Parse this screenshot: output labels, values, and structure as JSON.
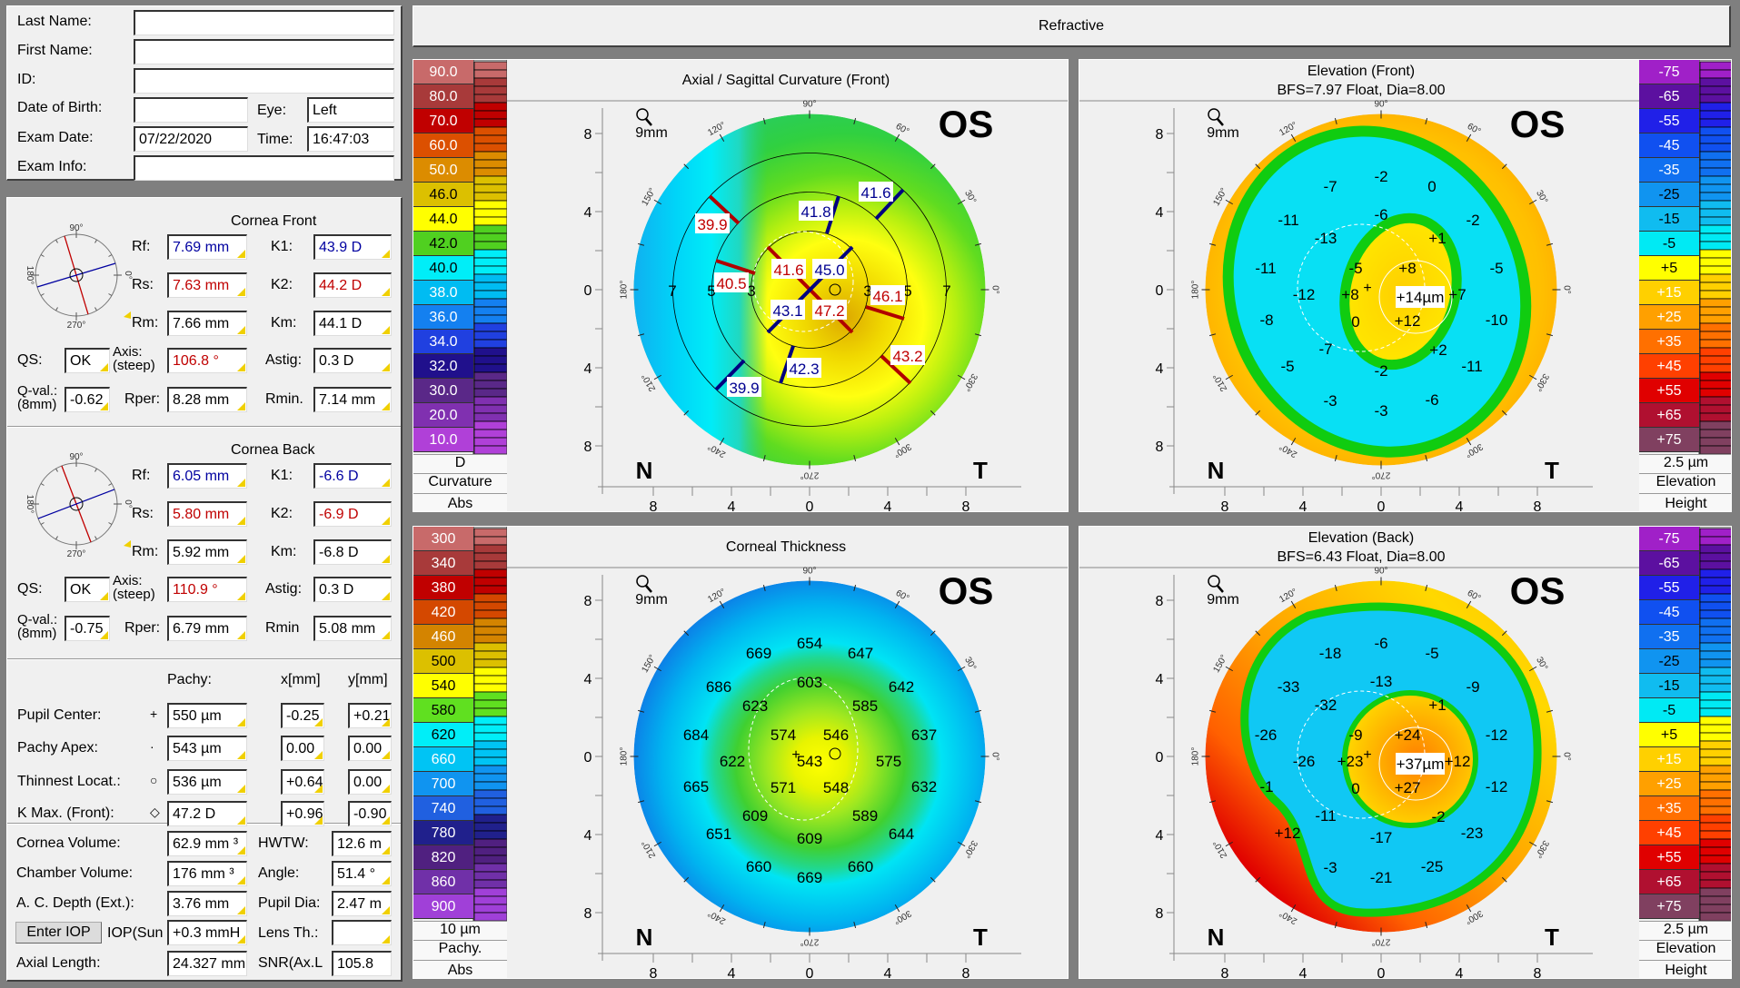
{
  "patient": {
    "last_name_label": "Last Name:",
    "last_name": "",
    "first_name_label": "First Name:",
    "first_name": "",
    "id_label": "ID:",
    "id": "",
    "dob_label": "Date of Birth:",
    "dob": "",
    "eye_label": "Eye:",
    "eye": "Left",
    "exam_date_label": "Exam Date:",
    "exam_date": "07/22/2020",
    "time_label": "Time:",
    "time": "16:47:03",
    "exam_info_label": "Exam Info:",
    "exam_info": ""
  },
  "compass_labels": {
    "top": "90°",
    "bottom": "270°",
    "left": "180°",
    "right": "0°"
  },
  "cornea_front": {
    "title": "Cornea Front",
    "rf_label": "Rf:",
    "rf": "7.69 mm",
    "k1_label": "K1:",
    "k1": "43.9 D",
    "rs_label": "Rs:",
    "rs": "7.63 mm",
    "k2_label": "K2:",
    "k2": "44.2 D",
    "rm_label": "Rm:",
    "rm": "7.66 mm",
    "km_label": "Km:",
    "km": "44.1 D",
    "qs_label": "QS:",
    "qs": "OK",
    "axis_label": "Axis:",
    "axis_label2": "(steep)",
    "axis": "106.8 °",
    "astig_label": "Astig:",
    "astig": "0.3 D",
    "qval_label": "Q-val.:",
    "qval_label2": "(8mm)",
    "qval": "-0.62",
    "rper_label": "Rper:",
    "rper": "8.28 mm",
    "rmin_label": "Rmin.",
    "rmin": "7.14 mm",
    "steep_axis_deg": 106.8,
    "flat_axis_deg": 16.8
  },
  "cornea_back": {
    "title": "Cornea Back",
    "rf_label": "Rf:",
    "rf": "6.05 mm",
    "k1_label": "K1:",
    "k1": "-6.6 D",
    "rs_label": "Rs:",
    "rs": "5.80 mm",
    "k2_label": "K2:",
    "k2": "-6.9 D",
    "rm_label": "Rm:",
    "rm": "5.92 mm",
    "km_label": "Km:",
    "km": "-6.8 D",
    "qs_label": "QS:",
    "qs": "OK",
    "axis_label": "Axis:",
    "axis_label2": "(steep)",
    "axis": "110.9 °",
    "astig_label": "Astig:",
    "astig": "0.3 D",
    "qval_label": "Q-val.:",
    "qval_label2": "(8mm)",
    "qval": "-0.75",
    "rper_label": "Rper:",
    "rper": "6.79 mm",
    "rmin_label": "Rmin",
    "rmin": "5.08 mm",
    "steep_axis_deg": 110.9,
    "flat_axis_deg": 20.9
  },
  "pachy": {
    "header_pachy": "Pachy:",
    "header_x": "x[mm]",
    "header_y": "y[mm]",
    "rows": [
      {
        "label": "Pupil Center:",
        "symbol": "+",
        "pachy": "550 µm",
        "x": "-0.25",
        "y": "+0.21"
      },
      {
        "label": "Pachy Apex:",
        "symbol": "·",
        "pachy": "543 µm",
        "x": "0.00",
        "y": "0.00"
      },
      {
        "label": "Thinnest Locat.:",
        "symbol": "○",
        "pachy": "536 µm",
        "x": "+0.64",
        "y": "0.00"
      },
      {
        "label": "K Max. (Front):",
        "symbol": "◇",
        "pachy": "47.2 D",
        "x": "+0.96",
        "y": "-0.90"
      }
    ]
  },
  "volumes": {
    "cornea_volume_label": "Cornea Volume:",
    "cornea_volume": "62.9 mm ³",
    "hwtw_label": "HWTW:",
    "hwtw": "12.6 m",
    "chamber_volume_label": "Chamber Volume:",
    "chamber_volume": "176 mm ³",
    "angle_label": "Angle:",
    "angle": "51.4 °",
    "ac_depth_label": "A. C. Depth (Ext.):",
    "ac_depth": "3.76 mm",
    "pupil_dia_label": "Pupil Dia:",
    "pupil_dia": "2.47 m",
    "enter_iop": "Enter IOP",
    "iop_label": "IOP(Sun",
    "iop": "+0.3 mmH",
    "lens_th_label": "Lens Th.:",
    "lens_th": "",
    "axial_length_label": "Axial Length:",
    "axial_length": "24.327 mm",
    "snr_label": "SNR(Ax.L",
    "snr": "105.8"
  },
  "header": {
    "title": "Refractive"
  },
  "common": {
    "eye": "OS",
    "zoom": "9mm",
    "nasal": "N",
    "temporal": "T",
    "axis_ticks": [
      "8",
      "4",
      "0",
      "4",
      "8"
    ],
    "degree_labels": [
      "0°",
      "30°",
      "60°",
      "90°",
      "120°",
      "150°",
      "180°",
      "210°",
      "240°",
      "270°",
      "300°",
      "330°"
    ]
  },
  "maps": {
    "axial": {
      "title": "Axial / Sagittal Curvature (Front)",
      "scale": {
        "values": [
          "90.0",
          "80.0",
          "70.0",
          "60.0",
          "50.0",
          "46.0",
          "44.0",
          "42.0",
          "40.0",
          "38.0",
          "36.0",
          "34.0",
          "32.0",
          "30.0",
          "20.0",
          "10.0"
        ],
        "colors": [
          "#c86a6a",
          "#a83a3a",
          "#c00000",
          "#dc5000",
          "#dc8c00",
          "#dcc000",
          "#ffff00",
          "#50d020",
          "#00eef8",
          "#00bcf2",
          "#1480f0",
          "#2040e0",
          "#20108c",
          "#5a2888",
          "#8030b0",
          "#b040d8"
        ],
        "unit": "D",
        "kind": "Curvature",
        "mode": "Abs"
      },
      "ring_numbers": [
        "7",
        "5",
        "3",
        "3",
        "5",
        "7"
      ],
      "labels": [
        {
          "value": "39.9",
          "color": "#c00000"
        },
        {
          "value": "41.8",
          "color": "#000090"
        },
        {
          "value": "41.6",
          "color": "#000090"
        },
        {
          "value": "40.5",
          "color": "#c00000"
        },
        {
          "value": "41.6",
          "color": "#c00000"
        },
        {
          "value": "45.0",
          "color": "#000090"
        },
        {
          "value": "46.1",
          "color": "#c00000"
        },
        {
          "value": "43.1",
          "color": "#000090"
        },
        {
          "value": "47.2",
          "color": "#c00000"
        },
        {
          "value": "43.2",
          "color": "#c00000"
        },
        {
          "value": "42.3",
          "color": "#000090"
        },
        {
          "value": "39.9",
          "color": "#000090"
        }
      ]
    },
    "elev_front": {
      "title": "Elevation (Front)",
      "subtitle": "BFS=7.97 Float, Dia=8.00",
      "scale": {
        "values": [
          "-75",
          "-65",
          "-55",
          "-45",
          "-35",
          "-25",
          "-15",
          "-5",
          "+5",
          "+15",
          "+25",
          "+35",
          "+45",
          "+55",
          "+65",
          "+75"
        ],
        "colors": [
          "#a020c8",
          "#5c10a0",
          "#2020e8",
          "#1050f0",
          "#1070f0",
          "#1094f0",
          "#10bcf0",
          "#00eaf4",
          "#ffff00",
          "#ffd000",
          "#ffa000",
          "#ff7000",
          "#ff4000",
          "#e00000",
          "#b01030",
          "#804060"
        ],
        "unit": "2.5 µm",
        "kind": "Elevation",
        "mode": "Height"
      },
      "labels": [
        "-7",
        "-2",
        "0",
        "-11",
        "-6",
        "-2",
        "-13",
        "+1",
        "-11",
        "-5",
        "+8",
        "-5",
        "-12",
        "+8",
        "+14µm",
        "+7",
        "-8",
        "0",
        "+12",
        "-10",
        "-7",
        "+2",
        "-5",
        "-2",
        "-11",
        "-3",
        "-6",
        "-3"
      ]
    },
    "thickness": {
      "title": "Corneal Thickness",
      "scale": {
        "values": [
          "300",
          "340",
          "380",
          "420",
          "460",
          "500",
          "540",
          "580",
          "620",
          "660",
          "700",
          "740",
          "780",
          "820",
          "860",
          "900"
        ],
        "colors": [
          "#c86a6a",
          "#a83a3a",
          "#c00000",
          "#d44800",
          "#d48400",
          "#dcc000",
          "#ffff00",
          "#60e020",
          "#00eef8",
          "#00c4f4",
          "#1094f0",
          "#2060e0",
          "#20208c",
          "#502080",
          "#7030a8",
          "#a040d8"
        ],
        "unit": "10 µm",
        "kind": "Pachy.",
        "mode": "Abs"
      },
      "labels": [
        "669",
        "654",
        "647",
        "686",
        "603",
        "642",
        "623",
        "585",
        "684",
        "574",
        "546",
        "637",
        "622",
        "543",
        "575",
        "665",
        "571",
        "548",
        "632",
        "609",
        "589",
        "651",
        "609",
        "644",
        "660",
        "660",
        "669"
      ]
    },
    "elev_back": {
      "title": "Elevation (Back)",
      "subtitle": "BFS=6.43 Float, Dia=8.00",
      "scale": {
        "values": [
          "-75",
          "-65",
          "-55",
          "-45",
          "-35",
          "-25",
          "-15",
          "-5",
          "+5",
          "+15",
          "+25",
          "+35",
          "+45",
          "+55",
          "+65",
          "+75"
        ],
        "colors": [
          "#a020c8",
          "#5c10a0",
          "#2020e8",
          "#1050f0",
          "#1070f0",
          "#1094f0",
          "#10bcf0",
          "#00eaf4",
          "#ffff00",
          "#ffd000",
          "#ffa000",
          "#ff7000",
          "#ff4000",
          "#e00000",
          "#b01030",
          "#804060"
        ],
        "unit": "2.5 µm",
        "kind": "Elevation",
        "mode": "Height"
      },
      "labels": [
        "-18",
        "-6",
        "-5",
        "-33",
        "-13",
        "-9",
        "-32",
        "+1",
        "-26",
        "-9",
        "+24",
        "-12",
        "-26",
        "+23",
        "+37µm",
        "+12",
        "-1",
        "0",
        "+27",
        "-12",
        "-11",
        "-2",
        "+12",
        "-17",
        "-23",
        "-3",
        "-25",
        "-21"
      ]
    }
  }
}
